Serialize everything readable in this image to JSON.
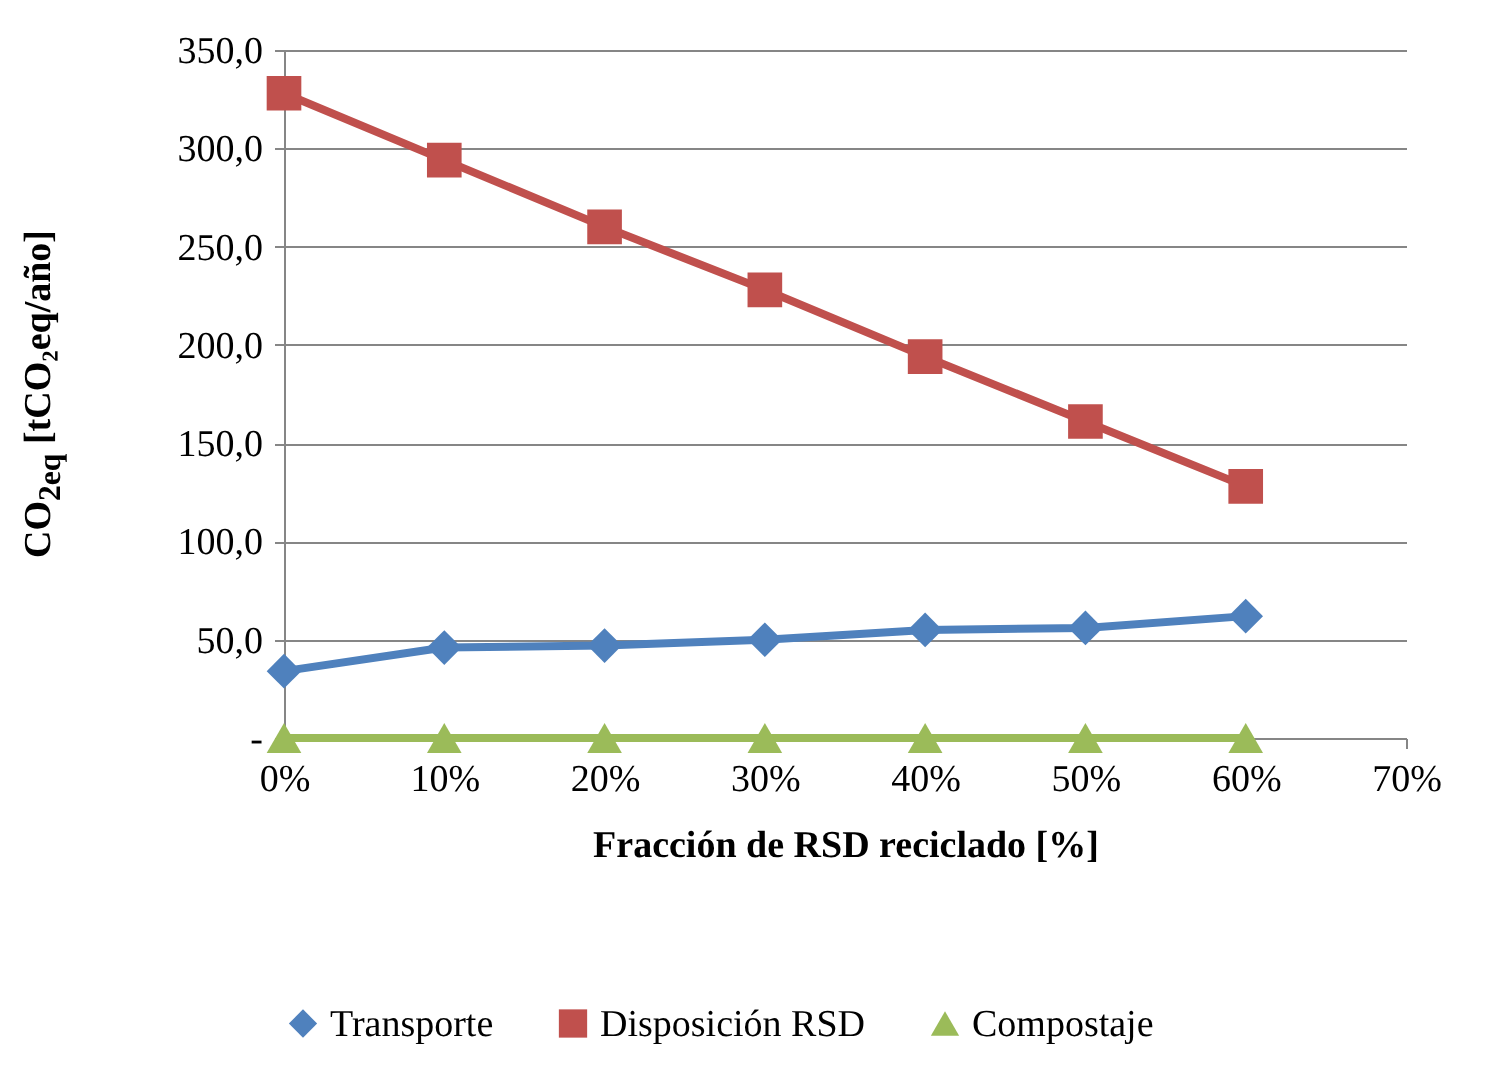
{
  "chart_data": {
    "type": "line",
    "xlabel": "Fracción de RSD reciclado [%]",
    "ylabel": "CO$_{2eq}$ [tCO₂eq/año]",
    "x": [
      0,
      10,
      20,
      30,
      40,
      50,
      60
    ],
    "xlim": [
      0,
      70
    ],
    "xticks": [
      {
        "value": 0,
        "label": "0%"
      },
      {
        "value": 10,
        "label": "10%"
      },
      {
        "value": 20,
        "label": "20%"
      },
      {
        "value": 30,
        "label": "30%"
      },
      {
        "value": 40,
        "label": "40%"
      },
      {
        "value": 50,
        "label": "50%"
      },
      {
        "value": 60,
        "label": "60%"
      },
      {
        "value": 70,
        "label": "70%"
      }
    ],
    "ylim": [
      0,
      350
    ],
    "yticks": [
      {
        "value": 0,
        "label": "-"
      },
      {
        "value": 50,
        "label": "50,0"
      },
      {
        "value": 100,
        "label": "100,0"
      },
      {
        "value": 150,
        "label": "150,0"
      },
      {
        "value": 200,
        "label": "200,0"
      },
      {
        "value": 250,
        "label": "250,0"
      },
      {
        "value": 300,
        "label": "300,0"
      },
      {
        "value": 350,
        "label": "350,0"
      }
    ],
    "grid": "y",
    "legend": "bottom",
    "line_style": "solid",
    "series": [
      {
        "name": "Transporte",
        "color": "#4f81bd",
        "marker": "diamond",
        "values": [
          34,
          46,
          47,
          50,
          55,
          56,
          62
        ]
      },
      {
        "name": "Disposición RSD",
        "color": "#c0504d",
        "marker": "square",
        "values": [
          328,
          294,
          260,
          228,
          194,
          161,
          128
        ]
      },
      {
        "name": "Compostaje",
        "color": "#9bbb59",
        "marker": "triangle",
        "values": [
          0,
          0,
          0,
          0,
          0,
          0,
          0
        ]
      }
    ]
  }
}
